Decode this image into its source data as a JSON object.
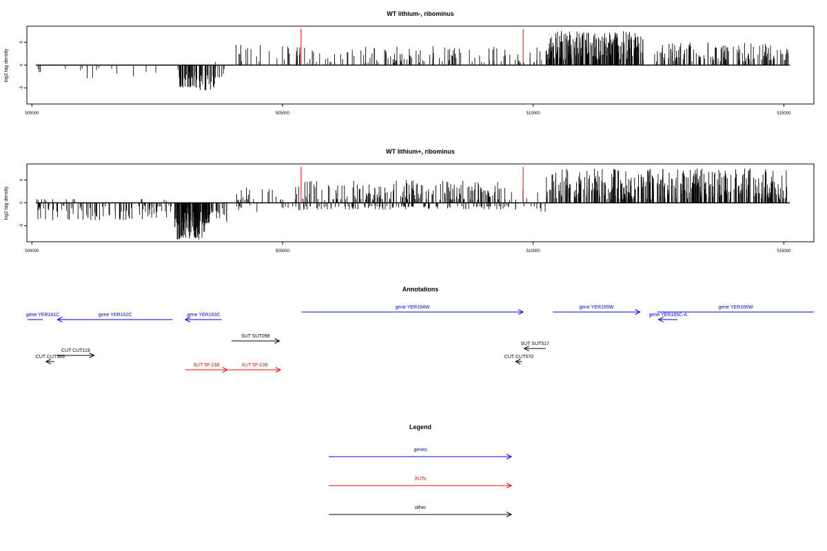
{
  "chart_data": [
    {
      "type": "bar",
      "title": "WT lithium-, ribominus",
      "ylabel": "log2 tag density",
      "xlim": [
        499900,
        515600
      ],
      "ylim": [
        -8.5,
        8.5
      ],
      "xticks": [
        500000,
        505000,
        510000,
        515000
      ],
      "yticks": [
        -5,
        0,
        5
      ],
      "marker_lines": [
        505370,
        509800
      ],
      "track_extent": [
        500080,
        515120
      ],
      "series": [
        {
          "values_by_region": [
            {
              "x_range": [
                500100,
                500200
              ],
              "count": 3,
              "min": -1.8,
              "max": -0.6
            },
            {
              "x_range": [
                500650,
                502700
              ],
              "count": 13,
              "min": -3.0,
              "max": 1.0
            },
            {
              "x_range": [
                502900,
                503350
              ],
              "count": 40,
              "min": -5.0,
              "max": -1.0
            },
            {
              "x_range": [
                503350,
                503650
              ],
              "count": 22,
              "min": -5.5,
              "max": -2.0
            },
            {
              "x_range": [
                503650,
                503900
              ],
              "count": 8,
              "min": -2.8,
              "max": 1.5
            },
            {
              "x_range": [
                504000,
                505300
              ],
              "count": 22,
              "min": 0.8,
              "max": 4.5
            },
            {
              "x_range": [
                505300,
                508500
              ],
              "count": 80,
              "min": 0.5,
              "max": 4.2
            },
            {
              "x_range": [
                508500,
                510200
              ],
              "count": 34,
              "min": 0.5,
              "max": 4.0
            },
            {
              "x_range": [
                510250,
                512200
              ],
              "count": 260,
              "min": 1.0,
              "max": 7.5
            },
            {
              "x_range": [
                512400,
                515100
              ],
              "count": 130,
              "min": 0.8,
              "max": 5.0
            }
          ]
        }
      ]
    },
    {
      "type": "bar",
      "title": "WT lithium+, ribominus",
      "ylabel": "log2 tag density",
      "xlim": [
        499900,
        515600
      ],
      "ylim": [
        -8.5,
        8.5
      ],
      "xticks": [
        500000,
        505000,
        510000,
        515000
      ],
      "yticks": [
        -5,
        0,
        5
      ],
      "marker_lines": [
        505370,
        509800
      ],
      "track_extent": [
        500080,
        515120
      ],
      "series": [
        {
          "values_by_region": [
            {
              "x_range": [
                500080,
                502800
              ],
              "count": 110,
              "min": -3.8,
              "max": 0.8
            },
            {
              "x_range": [
                502850,
                503450
              ],
              "count": 90,
              "min": -8.0,
              "max": -1.0
            },
            {
              "x_range": [
                503450,
                503900
              ],
              "count": 30,
              "min": -4.5,
              "max": -0.8
            },
            {
              "x_range": [
                504000,
                505400
              ],
              "count": 40,
              "min": -2.0,
              "max": 4.2
            },
            {
              "x_range": [
                505400,
                509700
              ],
              "count": 300,
              "min": -1.5,
              "max": 5.0
            },
            {
              "x_range": [
                509700,
                510250
              ],
              "count": 10,
              "min": -2.0,
              "max": 3.5
            },
            {
              "x_range": [
                510250,
                515100
              ],
              "count": 420,
              "min": 0.8,
              "max": 7.5
            }
          ]
        }
      ]
    }
  ],
  "annotations_title": "Annotations",
  "annotations": [
    {
      "label": "gene YER161C",
      "start": 499910,
      "end": 500220,
      "strand": "-",
      "row": 1,
      "type": "gene",
      "arrow_shown": false
    },
    {
      "label": "gene YER162C",
      "start": 500510,
      "end": 502810,
      "strand": "-",
      "row": 1,
      "type": "gene",
      "arrow_shown": true
    },
    {
      "label": "gene YER163C",
      "start": 503060,
      "end": 503790,
      "strand": "-",
      "row": 1,
      "type": "gene",
      "arrow_shown": true
    },
    {
      "label": "gene YER164W",
      "start": 505380,
      "end": 509800,
      "strand": "+",
      "row": 0,
      "type": "gene",
      "arrow_shown": true
    },
    {
      "label": "gene YER165W",
      "start": 510390,
      "end": 512130,
      "strand": "+",
      "row": 0,
      "type": "gene",
      "arrow_shown": true
    },
    {
      "label": "gene YER165C-A",
      "start": 512500,
      "end": 512880,
      "strand": "-",
      "row": 1,
      "type": "gene",
      "arrow_shown": true
    },
    {
      "label": "gene YER166W",
      "start": 512480,
      "end": 515600,
      "strand": "+",
      "row": 0,
      "type": "gene",
      "arrow_shown": false
    },
    {
      "label": "SUT SUT098",
      "start": 503980,
      "end": 504940,
      "strand": "+",
      "row": 2,
      "type": "other",
      "arrow_shown": true
    },
    {
      "label": "SUT SUT517",
      "start": 509820,
      "end": 510250,
      "strand": "-",
      "row": 3,
      "type": "other",
      "arrow_shown": true
    },
    {
      "label": "CUT CUT119",
      "start": 500510,
      "end": 501240,
      "strand": "+",
      "row": 4,
      "type": "other",
      "arrow_shown": true
    },
    {
      "label": "CUT CUT569",
      "start": 500280,
      "end": 500450,
      "strand": "-",
      "row": 5,
      "type": "other",
      "arrow_shown": true
    },
    {
      "label": "CUT CUT570",
      "start": 509650,
      "end": 509780,
      "strand": "-",
      "row": 5,
      "type": "other",
      "arrow_shown": true
    },
    {
      "label": "XUT 5F-238",
      "start": 503060,
      "end": 503900,
      "strand": "+",
      "row": 6,
      "type": "xut",
      "arrow_shown": true
    },
    {
      "label": "XUT 5F-239",
      "start": 503920,
      "end": 504960,
      "strand": "+",
      "row": 6,
      "type": "xut",
      "arrow_shown": true
    }
  ],
  "legend_title": "Legend",
  "legend": [
    {
      "label": "genes",
      "type": "gene"
    },
    {
      "label": "XUTs",
      "type": "xut"
    },
    {
      "label": "other",
      "type": "other"
    }
  ],
  "colors": {
    "gene": "#0000ff",
    "xut": "#ff0000",
    "other": "#000000",
    "marker": "#ff0000",
    "bars": "#000000"
  }
}
